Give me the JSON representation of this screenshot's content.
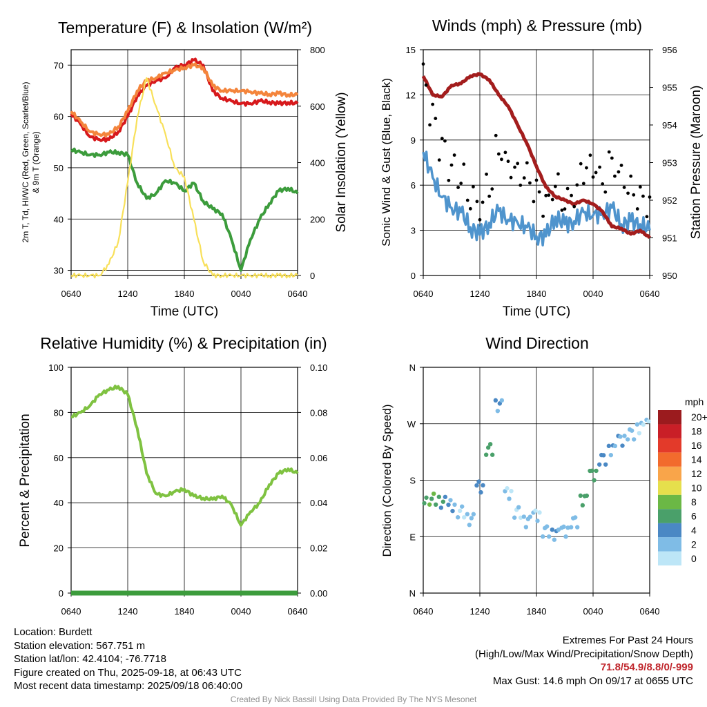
{
  "chart_data": [
    {
      "type": "line",
      "title": "Temperature (F) & Insolation (W/m²)",
      "xlabel": "Time (UTC)",
      "ylabel": "2m T, Td, HI/WC (Red, Green, Scarlet/Blue) & 9m T (Orange)",
      "ylabel_line1": "2m T, Td, HI/WC (Red, Green, Scarlet/Blue)",
      "ylabel_line2": "& 9m T (Orange)",
      "ylabel_right": "Solar Insolation (Yellow)",
      "x_ticks": [
        "0640",
        "1240",
        "1840",
        "0040",
        "0640"
      ],
      "y_ticks": [
        30,
        40,
        50,
        60,
        70
      ],
      "y_ticks_right": [
        0,
        200,
        400,
        600,
        800
      ],
      "ylim": [
        29,
        73
      ],
      "ylim_right": [
        0,
        800
      ],
      "grid": true,
      "series": [
        {
          "name": "2m T",
          "color": "#d7191c",
          "x": [
            0,
            1,
            2,
            3,
            4,
            5,
            6,
            7,
            8,
            9,
            10,
            11,
            12,
            13,
            14,
            15,
            16,
            17,
            18,
            19,
            20,
            21,
            22,
            23,
            24
          ],
          "values": [
            60.5,
            58.5,
            56,
            55.5,
            55.5,
            57,
            60,
            64,
            66,
            67,
            67.5,
            69.5,
            70,
            71,
            70,
            65,
            63.5,
            63,
            62.5,
            62.5,
            63,
            62.8,
            62.5,
            62.7,
            62.5
          ]
        },
        {
          "name": "9m T",
          "color": "#f4853c",
          "x": [
            0,
            1,
            2,
            3,
            4,
            5,
            6,
            7,
            8,
            9,
            10,
            11,
            12,
            13,
            14,
            15,
            16,
            17,
            18,
            19,
            20,
            21,
            22,
            23,
            24
          ],
          "values": [
            61,
            59,
            57,
            56.5,
            56.5,
            58,
            61,
            65,
            67,
            67.5,
            68.5,
            69,
            69.5,
            70,
            69.5,
            66,
            65,
            65,
            65,
            64.8,
            64.5,
            64.3,
            64.5,
            64.2,
            64.2
          ]
        },
        {
          "name": "Td",
          "color": "#3c9c3c",
          "x": [
            0,
            1,
            2,
            3,
            4,
            5,
            6,
            7,
            8,
            9,
            10,
            11,
            12,
            13,
            14,
            15,
            16,
            17,
            18,
            19,
            20,
            21,
            22,
            23,
            24
          ],
          "values": [
            53.5,
            53,
            52.5,
            52.5,
            53,
            53,
            52.5,
            47,
            44,
            45,
            47.5,
            47,
            45.5,
            47,
            43.5,
            42,
            41,
            36,
            30,
            36,
            40,
            43,
            45.5,
            46,
            45
          ]
        },
        {
          "name": "Solar Insolation",
          "axis": "right",
          "color": "#f8e05a",
          "x": [
            0,
            1,
            2,
            3,
            4,
            5,
            6,
            7,
            8,
            9,
            10,
            11,
            12,
            13,
            14,
            15,
            16,
            17,
            18,
            19,
            20,
            21,
            22,
            23,
            24
          ],
          "values": [
            0,
            0,
            0,
            0,
            40,
            120,
            330,
            560,
            700,
            600,
            500,
            380,
            350,
            200,
            50,
            0,
            0,
            0,
            0,
            0,
            0,
            0,
            0,
            0,
            0
          ]
        }
      ]
    },
    {
      "type": "scatter",
      "title": "Winds (mph) & Pressure (mb)",
      "xlabel": "Time (UTC)",
      "ylabel": "Sonic Wind & Gust (Blue, Black)",
      "ylabel_right": "Station Pressure (Maroon)",
      "x_ticks": [
        "0640",
        "1240",
        "1840",
        "0040",
        "0640"
      ],
      "y_ticks": [
        0,
        3,
        6,
        9,
        12,
        15
      ],
      "y_ticks_right": [
        950,
        951,
        952,
        953,
        954,
        955,
        956
      ],
      "ylim": [
        0,
        15
      ],
      "ylim_right": [
        950,
        956
      ],
      "grid": true,
      "series": [
        {
          "name": "Sonic Wind",
          "color": "#4f94cd",
          "x": [
            0,
            1,
            2,
            3,
            4,
            5,
            6,
            7,
            8,
            9,
            10,
            11,
            12,
            13,
            14,
            15,
            16,
            17,
            18,
            19,
            20,
            21,
            22,
            23,
            24
          ],
          "values": [
            8.2,
            6.5,
            5.2,
            4.5,
            4.2,
            3.2,
            2.7,
            3.5,
            4.3,
            3.7,
            3.5,
            3.2,
            2.6,
            2.6,
            3.9,
            3.4,
            3.6,
            4.2,
            4.0,
            4.1,
            4.5,
            3.4,
            3.6,
            3.4,
            3.0
          ]
        },
        {
          "name": "Gust",
          "color": "#000000",
          "x": [
            0,
            1,
            2,
            3,
            4,
            5,
            6,
            7,
            8,
            9,
            10,
            11,
            12,
            13,
            14,
            15,
            16,
            17,
            18,
            19,
            20,
            21,
            22,
            23,
            24
          ],
          "values": [
            13.2,
            10.5,
            8.5,
            7.2,
            6.5,
            5.2,
            4.6,
            6.0,
            8.4,
            7.4,
            6.8,
            6.6,
            5.5,
            4.8,
            5.9,
            4.9,
            5.4,
            7.0,
            7.2,
            6.3,
            7.5,
            6.6,
            5.7,
            5.1,
            4.8
          ]
        },
        {
          "name": "Station Pressure",
          "axis": "right",
          "color": "#a31d1d",
          "x": [
            0,
            1,
            2,
            3,
            4,
            5,
            6,
            7,
            8,
            9,
            10,
            11,
            12,
            13,
            14,
            15,
            16,
            17,
            18,
            19,
            20,
            21,
            22,
            23,
            24
          ],
          "values": [
            955.3,
            954.8,
            954.75,
            955.05,
            955.1,
            955.3,
            955.35,
            955.2,
            954.8,
            954.5,
            954.0,
            953.5,
            952.9,
            952.35,
            952.1,
            952.0,
            951.9,
            952.0,
            951.9,
            951.7,
            951.3,
            951.25,
            951.1,
            951.2,
            951.0
          ]
        }
      ]
    },
    {
      "type": "line",
      "title": "Relative Humidity (%) & Precipitation (in)",
      "ylabel": "Percent & Precipitation",
      "x_ticks": [
        "0640",
        "1240",
        "1840",
        "0040",
        "0640"
      ],
      "y_ticks": [
        0,
        20,
        40,
        60,
        80,
        100
      ],
      "y_ticks_right": [
        "0.00",
        "0.02",
        "0.04",
        "0.06",
        "0.08",
        "0.10"
      ],
      "ylim": [
        0,
        100
      ],
      "ylim_right": [
        0,
        0.1
      ],
      "grid": true,
      "series": [
        {
          "name": "Relative Humidity",
          "color": "#7fc241",
          "x": [
            0,
            1,
            2,
            3,
            4,
            5,
            6,
            7,
            8,
            9,
            10,
            11,
            12,
            13,
            14,
            15,
            16,
            17,
            18,
            19,
            20,
            21,
            22,
            23,
            24
          ],
          "values": [
            78,
            80,
            83,
            88,
            90,
            91.5,
            88,
            73,
            53,
            44,
            43,
            45,
            46,
            43,
            42,
            41.5,
            43,
            39,
            30,
            36,
            40,
            48,
            53,
            55,
            53
          ]
        },
        {
          "name": "Precipitation",
          "axis": "right",
          "color": "#3c9c3c",
          "x": [
            0,
            24
          ],
          "values": [
            0.0,
            0.0
          ]
        }
      ]
    },
    {
      "type": "scatter",
      "title": "Wind Direction",
      "ylabel": "Direction (Colored By Speed)",
      "x_ticks": [
        "0640",
        "1240",
        "1840",
        "0040",
        "0640"
      ],
      "y_ticks": [
        "N",
        "E",
        "S",
        "W",
        "N"
      ],
      "ylim": [
        0,
        360
      ],
      "grid": true,
      "legend_title": "mph",
      "legend_labels": [
        "0",
        "2",
        "4",
        "6",
        "8",
        "10",
        "12",
        "14",
        "16",
        "18",
        "20+"
      ],
      "legend_colors": [
        "#bde6f7",
        "#7fbce6",
        "#4a88c4",
        "#4aa06a",
        "#6bb845",
        "#e6df4c",
        "#f9a54a",
        "#f26b2d",
        "#e33a2a",
        "#c91f27",
        "#9b1b1e"
      ],
      "series": [
        {
          "name": "Wind Direction",
          "x": [
            0,
            1,
            2,
            3,
            4,
            5,
            6,
            7,
            8,
            9,
            10,
            11,
            12,
            13,
            14,
            15,
            16,
            17,
            18,
            19,
            20,
            21,
            22,
            23,
            24
          ],
          "values": [
            152,
            150,
            145,
            140,
            130,
            118,
            170,
            230,
            300,
            160,
            130,
            115,
            125,
            100,
            95,
            100,
            115,
            150,
            190,
            215,
            230,
            245,
            255,
            265,
            270
          ],
          "speeds": [
            7,
            8,
            6,
            4,
            2,
            3,
            5,
            7,
            4,
            2,
            2,
            3,
            2,
            3,
            4,
            3,
            3,
            7,
            7,
            5,
            4,
            4,
            3,
            2,
            2
          ]
        }
      ]
    }
  ],
  "info": {
    "location": "Location: Burdett",
    "elevation": "Station elevation: 567.751 m",
    "latlon": "Station lat/lon: 42.4104; -76.7718",
    "created": "Figure created on Thu, 2025-09-18, at 06:43 UTC",
    "recent": "Most recent data timestamp: 2025/09/18 06:40:00"
  },
  "extremes": {
    "title": "Extremes For Past 24 Hours",
    "subtitle": "(High/Low/Max Wind/Precipitation/Snow Depth)",
    "values": "71.8/54.9/8.8/0/-999",
    "gust": "Max Gust: 14.6 mph On 09/17 at 0655 UTC"
  },
  "credit": "Created By Nick Bassill Using Data Provided By The NYS Mesonet"
}
